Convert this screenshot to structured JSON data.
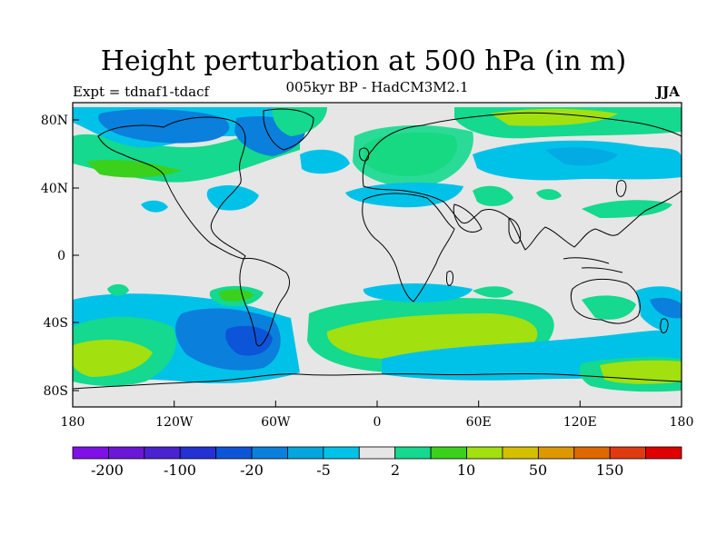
{
  "title": "Height perturbation at 500 hPa (in m)",
  "subtitle_left": "Expt = tdnaf1-tdacf",
  "subtitle_center": "005kyr BP - HadCM3M2.1",
  "subtitle_right": "JJA",
  "lat_ticks": [
    "80N",
    "40N",
    "0",
    "40S",
    "80S"
  ],
  "lon_ticks": [
    "180",
    "120W",
    "60W",
    "0",
    "60E",
    "120E",
    "180"
  ],
  "colorbar": {
    "colors": [
      "#7f10e6",
      "#6a17d6",
      "#4a22d0",
      "#2431d3",
      "#0d55d8",
      "#0a80dc",
      "#05a6dd",
      "#00c2e8",
      "#e6e6e6",
      "#14d98e",
      "#3bd01b",
      "#a2e010",
      "#d4c000",
      "#de9800",
      "#e06800",
      "#e03a10",
      "#e00000"
    ],
    "labels": [
      "-200",
      "-100",
      "-20",
      "-5",
      "2",
      "10",
      "50",
      "150"
    ]
  },
  "colors": {
    "land_outline": "#000000",
    "neutral": "#e6e6e6",
    "light_blue": "#00c2e8",
    "blue": "#0a80dc",
    "dark_blue": "#0d55d8",
    "teal": "#14d98e",
    "green": "#3bd01b",
    "yellow_green": "#a2e010"
  }
}
